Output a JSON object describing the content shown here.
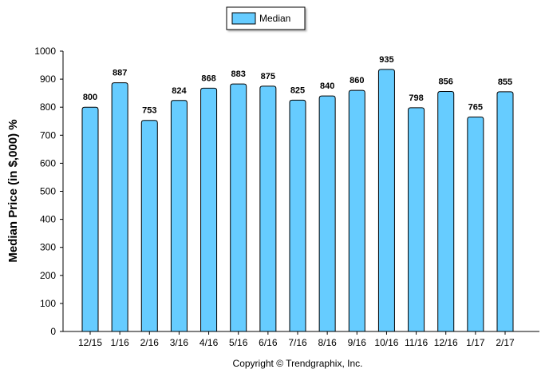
{
  "chart_data": {
    "type": "bar",
    "categories": [
      "12/15",
      "1/16",
      "2/16",
      "3/16",
      "4/16",
      "5/16",
      "6/16",
      "7/16",
      "8/16",
      "9/16",
      "10/16",
      "11/16",
      "12/16",
      "1/17",
      "2/17"
    ],
    "series": [
      {
        "name": "Median",
        "values": [
          800,
          887,
          753,
          824,
          868,
          883,
          875,
          825,
          840,
          860,
          935,
          798,
          856,
          765,
          855
        ],
        "color": "#66ccff"
      }
    ],
    "ylabel": "Median Price (in $,000) %",
    "ylim": [
      0,
      1000
    ],
    "yticks": [
      0,
      100,
      200,
      300,
      400,
      500,
      600,
      700,
      800,
      900,
      1000
    ],
    "legend_position": "top-center",
    "grid": false,
    "footer": "Copyright © Trendgraphix, Inc."
  }
}
